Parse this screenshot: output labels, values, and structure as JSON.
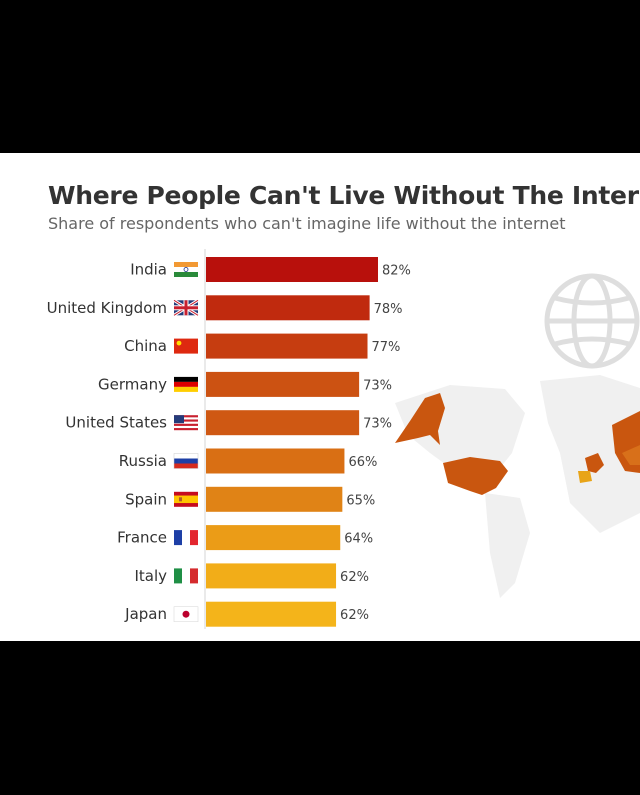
{
  "title": "Where People Can't Live Without The Internet",
  "subtitle": "Share of respondents who can't imagine life without the internet",
  "chart_data": {
    "type": "bar",
    "orientation": "horizontal",
    "title": "Where People Can't Live Without The Internet",
    "subtitle": "Share of respondents who can't imagine life without the internet",
    "categories": [
      "India",
      "United Kingdom",
      "China",
      "Germany",
      "United States",
      "Russia",
      "Spain",
      "France",
      "Italy",
      "Japan"
    ],
    "values": [
      82,
      78,
      77,
      73,
      73,
      66,
      65,
      64,
      62,
      62
    ],
    "value_labels": [
      "82%",
      "78%",
      "77%",
      "73%",
      "73%",
      "66%",
      "65%",
      "64%",
      "62%",
      "62%"
    ],
    "bar_colors": [
      "#b8100c",
      "#c02a0e",
      "#c63d10",
      "#cc5212",
      "#cf5813",
      "#d96f14",
      "#e08316",
      "#eb9c17",
      "#f2ad18",
      "#f4b41a"
    ],
    "flags": [
      "india-flag",
      "uk-flag",
      "china-flag",
      "germany-flag",
      "usa-flag",
      "russia-flag",
      "spain-flag",
      "france-flag",
      "italy-flag",
      "japan-flag"
    ],
    "xlim": [
      0,
      100
    ],
    "grid": false,
    "legend": "none"
  }
}
